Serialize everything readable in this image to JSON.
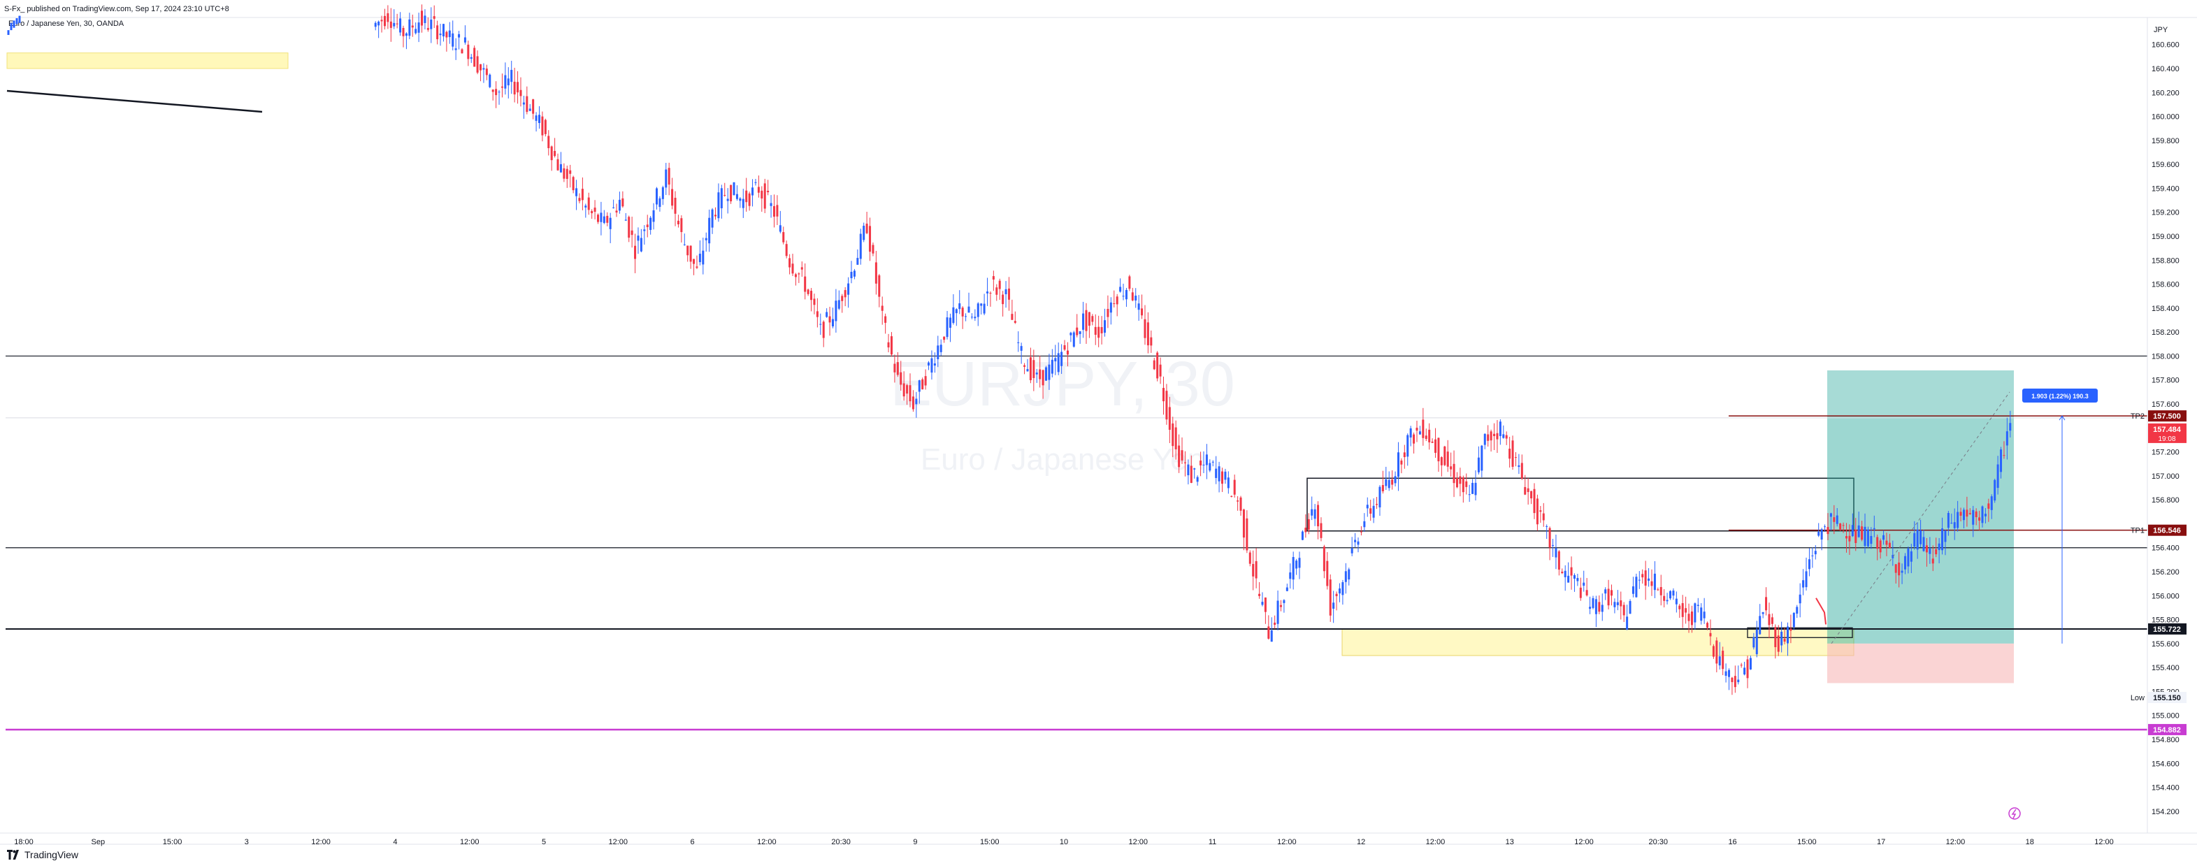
{
  "header": {
    "published_text": "S-Fx_ published on TradingView.com, Sep 17, 2024 23:10 UTC+8"
  },
  "symbol": {
    "description": "Euro / Japanese Yen, 30, OANDA",
    "watermark_ticker": "EURJPY, 30",
    "watermark_name": "Euro / Japanese Yen"
  },
  "footer": {
    "brand": "TradingView"
  },
  "price_axis": {
    "currency": "JPY",
    "ticks": [
      "160.600",
      "160.400",
      "160.200",
      "160.000",
      "159.800",
      "159.600",
      "159.400",
      "159.200",
      "159.000",
      "158.800",
      "158.600",
      "158.400",
      "158.200",
      "158.000",
      "157.800",
      "157.600",
      "157.200",
      "157.000",
      "156.800",
      "156.400",
      "156.200",
      "156.000",
      "155.800",
      "155.600",
      "155.400",
      "155.200",
      "155.000",
      "154.800",
      "154.600",
      "154.400",
      "154.200"
    ],
    "ticks_num": [
      160.6,
      160.4,
      160.2,
      160.0,
      159.8,
      159.6,
      159.4,
      159.2,
      159.0,
      158.8,
      158.6,
      158.4,
      158.2,
      158.0,
      157.8,
      157.6,
      157.2,
      157.0,
      156.8,
      156.4,
      156.2,
      156.0,
      155.8,
      155.6,
      155.4,
      155.2,
      155.0,
      154.8,
      154.6,
      154.4,
      154.2
    ]
  },
  "time_axis": {
    "labels": [
      "18:00",
      "Sep",
      "15:00",
      "3",
      "12:00",
      "4",
      "12:00",
      "5",
      "12:00",
      "6",
      "12:00",
      "20:30",
      "9",
      "15:00",
      "10",
      "12:00",
      "11",
      "12:00",
      "12",
      "12:00",
      "13",
      "12:00",
      "20:30",
      "16",
      "15:00",
      "17",
      "12:00",
      "18",
      "12:00"
    ]
  },
  "price_tags": [
    {
      "label": "TP2",
      "value": "157.500",
      "color": "#880e0e"
    },
    {
      "label": "",
      "value": "157.484",
      "color": "#f23645",
      "sub": "19:08"
    },
    {
      "label": "TP1",
      "value": "156.546",
      "color": "#880e0e"
    },
    {
      "label": "",
      "value": "155.722",
      "color": "#131722"
    },
    {
      "label": "Low",
      "value": "155.150",
      "color": "#f0f3fa"
    },
    {
      "label": "",
      "value": "154.882",
      "color": "#c83cd2"
    }
  ],
  "measure_label": "1.903 (1.22%) 190.3",
  "colors": {
    "up": "#2962ff",
    "down": "#f23645",
    "profit_zone": "#26a69a",
    "loss_zone": "#f7b7b7",
    "supply_zone": "#fff59d",
    "tp_line": "#880e0e",
    "magenta_line": "#c83cd2"
  },
  "chart_data": {
    "type": "candlestick",
    "symbol": "EURJPY",
    "timeframe": "30",
    "ylim": [
      154.1,
      160.82
    ],
    "last_price": 157.484,
    "key_levels": [
      158.0,
      157.5,
      156.546,
      156.4,
      155.722,
      154.882
    ],
    "low": 155.15,
    "close_path": [
      [
        0,
        160.75
      ],
      [
        1,
        160.85
      ],
      [
        2,
        160.7
      ],
      [
        3,
        160.8
      ],
      [
        4,
        160.75
      ],
      [
        5,
        160.65
      ],
      [
        6,
        160.6
      ],
      [
        7,
        160.4
      ],
      [
        8,
        160.2
      ],
      [
        9,
        160.3
      ],
      [
        10,
        160.1
      ],
      [
        11,
        159.9
      ],
      [
        12,
        159.6
      ],
      [
        13,
        159.4
      ],
      [
        14,
        159.2
      ],
      [
        15,
        159.1
      ],
      [
        16,
        159.3
      ],
      [
        17,
        158.9
      ],
      [
        18,
        159.2
      ],
      [
        19,
        159.5
      ],
      [
        20,
        159.0
      ],
      [
        21,
        158.7
      ],
      [
        22,
        159.2
      ],
      [
        23,
        159.4
      ],
      [
        24,
        159.3
      ],
      [
        25,
        159.4
      ],
      [
        26,
        159.2
      ],
      [
        27,
        158.8
      ],
      [
        28,
        158.6
      ],
      [
        29,
        158.2
      ],
      [
        30,
        158.4
      ],
      [
        31,
        158.7
      ],
      [
        32,
        159.1
      ],
      [
        33,
        158.3
      ],
      [
        34,
        157.8
      ],
      [
        35,
        157.6
      ],
      [
        36,
        157.9
      ],
      [
        37,
        158.2
      ],
      [
        38,
        158.4
      ],
      [
        39,
        158.3
      ],
      [
        40,
        158.6
      ],
      [
        41,
        158.5
      ],
      [
        42,
        158.0
      ],
      [
        43,
        157.8
      ],
      [
        44,
        157.9
      ],
      [
        45,
        158.1
      ],
      [
        46,
        158.3
      ],
      [
        47,
        158.2
      ],
      [
        48,
        158.5
      ],
      [
        49,
        158.6
      ],
      [
        50,
        158.2
      ],
      [
        51,
        157.8
      ],
      [
        52,
        157.2
      ],
      [
        53,
        157.0
      ],
      [
        54,
        157.1
      ],
      [
        55,
        157.0
      ],
      [
        56,
        156.8
      ],
      [
        57,
        156.2
      ],
      [
        58,
        155.7
      ],
      [
        59,
        156.0
      ],
      [
        60,
        156.4
      ],
      [
        61,
        156.8
      ],
      [
        62,
        155.9
      ],
      [
        63,
        156.2
      ],
      [
        64,
        156.6
      ],
      [
        65,
        156.8
      ],
      [
        66,
        157.0
      ],
      [
        67,
        157.3
      ],
      [
        68,
        157.4
      ],
      [
        69,
        157.2
      ],
      [
        70,
        157.0
      ],
      [
        71,
        156.8
      ],
      [
        72,
        157.3
      ],
      [
        73,
        157.4
      ],
      [
        74,
        157.1
      ],
      [
        75,
        156.8
      ],
      [
        76,
        156.5
      ],
      [
        77,
        156.2
      ],
      [
        78,
        156.1
      ],
      [
        79,
        155.9
      ],
      [
        80,
        156.0
      ],
      [
        81,
        155.8
      ],
      [
        82,
        156.2
      ],
      [
        83,
        156.1
      ],
      [
        84,
        156.0
      ],
      [
        85,
        155.8
      ],
      [
        86,
        155.9
      ],
      [
        87,
        155.5
      ],
      [
        88,
        155.3
      ],
      [
        89,
        155.4
      ],
      [
        90,
        155.9
      ],
      [
        91,
        155.6
      ],
      [
        92,
        155.8
      ],
      [
        93,
        156.3
      ],
      [
        94,
        156.6
      ],
      [
        95,
        156.6
      ],
      [
        96,
        156.5
      ],
      [
        97,
        156.5
      ],
      [
        98,
        156.4
      ],
      [
        99,
        156.2
      ],
      [
        100,
        156.5
      ],
      [
        101,
        156.3
      ],
      [
        102,
        156.6
      ],
      [
        103,
        156.7
      ],
      [
        104,
        156.6
      ],
      [
        105,
        156.9
      ],
      [
        106,
        157.484
      ]
    ],
    "zones": [
      {
        "name": "supply-zone-top-left",
        "y": [
          160.4,
          160.53
        ]
      },
      {
        "name": "demand-zone",
        "y": [
          155.5,
          155.72
        ]
      },
      {
        "name": "rectangle-box",
        "y": [
          156.54,
          156.98
        ]
      },
      {
        "name": "long-position-profit",
        "y": [
          155.6,
          157.88
        ]
      },
      {
        "name": "long-position-loss",
        "y": [
          155.27,
          155.6
        ]
      }
    ]
  }
}
